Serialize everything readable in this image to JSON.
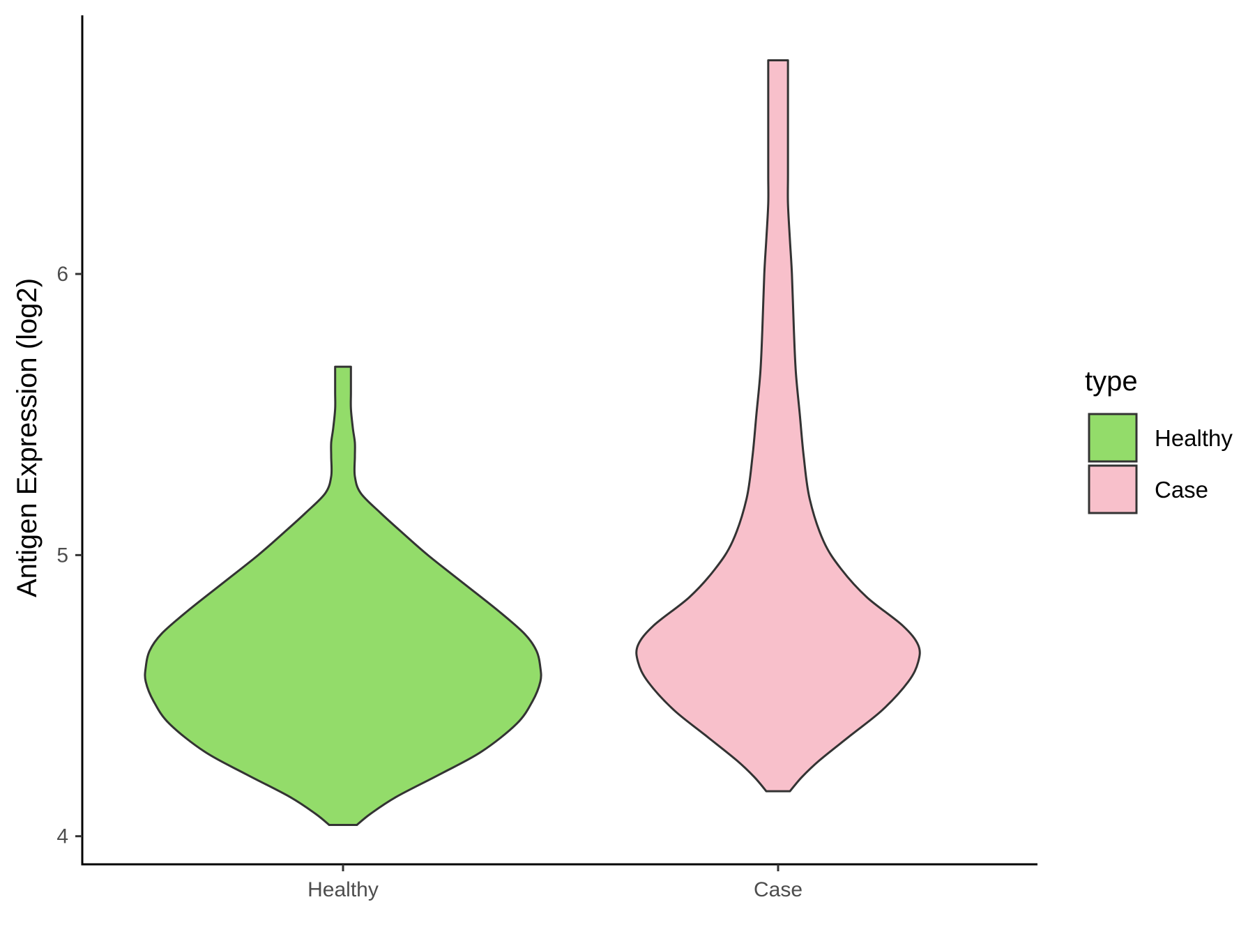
{
  "chart_data": {
    "type": "violin",
    "title": "",
    "xlabel": "",
    "ylabel": "Antigen Expression (log2)",
    "ylim": [
      3.9,
      6.92
    ],
    "yticks": [
      4,
      5,
      6
    ],
    "ytick_labels": [
      "4",
      "5",
      "6"
    ],
    "categories": [
      "Healthy",
      "Case"
    ],
    "grid": false,
    "legend": {
      "title": "type",
      "position": "right",
      "entries": [
        {
          "label": "Healthy",
          "color": "#93dc6a"
        },
        {
          "label": "Case",
          "color": "#f8c0cb"
        }
      ]
    },
    "outline_color": "#333333",
    "series": [
      {
        "category": "Healthy",
        "color": "#93dc6a",
        "min": 4.04,
        "max": 5.67,
        "density_profile": [
          [
            4.04,
            0.07
          ],
          [
            4.08,
            0.14
          ],
          [
            4.14,
            0.27
          ],
          [
            4.22,
            0.49
          ],
          [
            4.3,
            0.7
          ],
          [
            4.4,
            0.88
          ],
          [
            4.48,
            0.96
          ],
          [
            4.55,
            1.0
          ],
          [
            4.6,
            1.0
          ],
          [
            4.66,
            0.98
          ],
          [
            4.72,
            0.92
          ],
          [
            4.8,
            0.79
          ],
          [
            4.9,
            0.61
          ],
          [
            5.0,
            0.43
          ],
          [
            5.08,
            0.3
          ],
          [
            5.15,
            0.19
          ],
          [
            5.22,
            0.09
          ],
          [
            5.28,
            0.06
          ],
          [
            5.35,
            0.06
          ],
          [
            5.4,
            0.06
          ],
          [
            5.45,
            0.05
          ],
          [
            5.52,
            0.04
          ],
          [
            5.58,
            0.04
          ],
          [
            5.67,
            0.04
          ]
        ]
      },
      {
        "category": "Case",
        "color": "#f8c0cb",
        "min": 4.16,
        "max": 6.76,
        "density_profile": [
          [
            4.16,
            0.06
          ],
          [
            4.21,
            0.12
          ],
          [
            4.27,
            0.21
          ],
          [
            4.36,
            0.37
          ],
          [
            4.45,
            0.53
          ],
          [
            4.55,
            0.66
          ],
          [
            4.62,
            0.71
          ],
          [
            4.68,
            0.71
          ],
          [
            4.75,
            0.63
          ],
          [
            4.85,
            0.45
          ],
          [
            4.95,
            0.32
          ],
          [
            5.05,
            0.23
          ],
          [
            5.2,
            0.16
          ],
          [
            5.35,
            0.13
          ],
          [
            5.5,
            0.11
          ],
          [
            5.65,
            0.09
          ],
          [
            5.8,
            0.08
          ],
          [
            6.0,
            0.07
          ],
          [
            6.12,
            0.06
          ],
          [
            6.25,
            0.05
          ],
          [
            6.35,
            0.05
          ],
          [
            6.5,
            0.05
          ],
          [
            6.65,
            0.05
          ],
          [
            6.76,
            0.05
          ]
        ]
      }
    ]
  }
}
